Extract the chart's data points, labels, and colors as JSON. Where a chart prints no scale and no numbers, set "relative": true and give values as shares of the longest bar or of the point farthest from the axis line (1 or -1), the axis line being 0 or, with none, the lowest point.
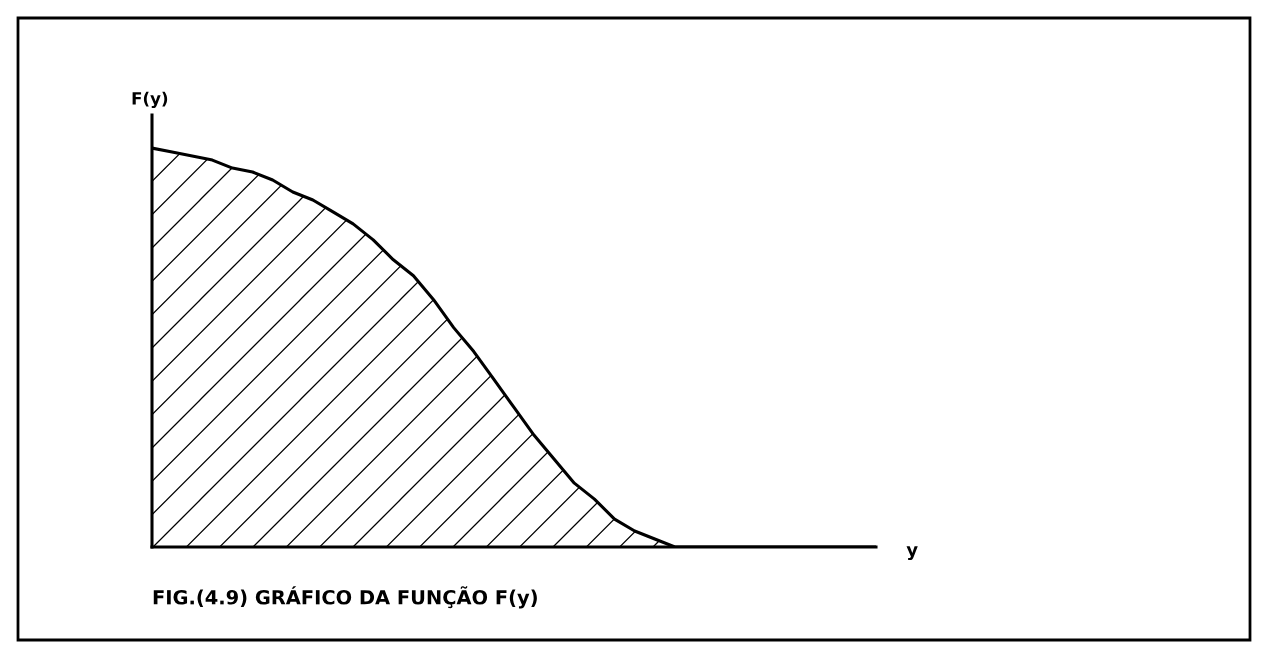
{
  "chart_data": {
    "type": "area",
    "title": "FIG.(4.9) GRÁFICO DA FUNÇÃO F(y)",
    "xlabel": "y",
    "ylabel": "F(y)",
    "relative": true,
    "categories": [
      null,
      null,
      null,
      null,
      null,
      null,
      null,
      null,
      null,
      null,
      null,
      null,
      null,
      null,
      null,
      null,
      null,
      null,
      null,
      null,
      null,
      null,
      null,
      null,
      null,
      null,
      null,
      null,
      null,
      null,
      null,
      null,
      null,
      null,
      null,
      null,
      null
    ],
    "series": [
      {
        "color": "#000000",
        "values": [
          1.0,
          0.99,
          0.98,
          0.97,
          0.95,
          0.94,
          0.92,
          0.89,
          0.87,
          0.84,
          0.81,
          0.77,
          0.72,
          0.68,
          0.62,
          0.55,
          0.49,
          0.42,
          0.35,
          0.28,
          0.22,
          0.16,
          0.12,
          0.07,
          0.04,
          0.02,
          0,
          0,
          0,
          0,
          0,
          0,
          0,
          0,
          0,
          0,
          0
        ]
      }
    ]
  }
}
